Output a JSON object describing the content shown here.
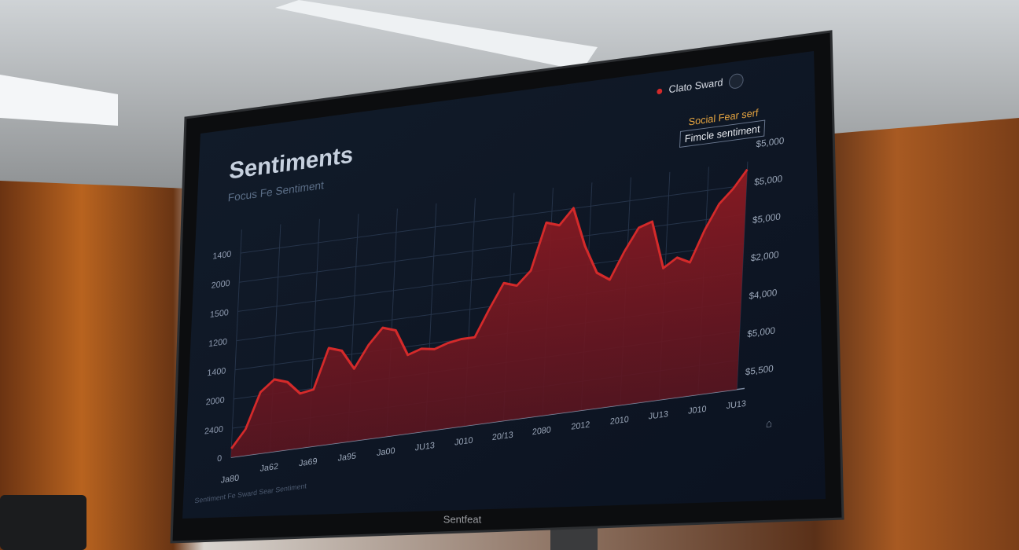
{
  "title": "Sentiments",
  "subtitle": "Focus Fe Sentiment",
  "annotation_top": "Social Fear serf",
  "annotation_bottom": "Fimcle sentiment",
  "bezel_label": "Sentfeat",
  "footer_note": "Sentiment Fe Sward Sear Sentiment",
  "chart_data": {
    "type": "area",
    "series": [
      {
        "name": "Clato Sward",
        "color": "#d42a2a",
        "values": [
          4,
          12,
          28,
          33,
          31,
          25,
          26,
          44,
          42,
          33,
          43,
          50,
          48,
          36,
          38,
          37,
          39,
          40,
          40,
          52,
          63,
          61,
          67,
          88,
          86,
          93,
          75,
          62,
          58,
          70,
          80,
          82,
          60,
          64,
          61,
          75,
          86,
          92,
          100
        ]
      }
    ],
    "ylim": [
      0,
      100
    ],
    "grid": true,
    "left_axis_labels": [
      "1400",
      "2000",
      "1500",
      "1200",
      "1400",
      "2000",
      "2400",
      "0"
    ],
    "right_axis_labels": [
      "$5,000",
      "$5,000",
      "$5,000",
      "$2,000",
      "$4,000",
      "$5,000",
      "$5,500"
    ],
    "x_axis_labels": [
      "Ja80",
      "Ja62",
      "Ja69",
      "Ja95",
      "Ja00",
      "JU13",
      "J010",
      "20/13",
      "2080",
      "2012",
      "2010",
      "JU13",
      "J010",
      "JU13"
    ]
  }
}
